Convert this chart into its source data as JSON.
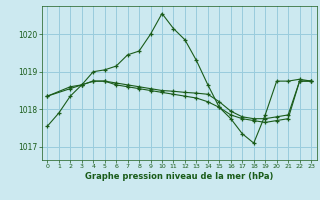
{
  "title": "Graphe pression niveau de la mer (hPa)",
  "background_color": "#cce9f0",
  "grid_color": "#99ccdd",
  "line_color": "#1a5c1a",
  "ylim": [
    1016.65,
    1020.75
  ],
  "yticks": [
    1017,
    1018,
    1019,
    1020
  ],
  "xlim": [
    -0.5,
    23.5
  ],
  "xticks": [
    0,
    1,
    2,
    3,
    4,
    5,
    6,
    7,
    8,
    9,
    10,
    11,
    12,
    13,
    14,
    15,
    16,
    17,
    18,
    19,
    20,
    21,
    22,
    23
  ],
  "series": [
    {
      "x": [
        0,
        1,
        2,
        3,
        4,
        5,
        6,
        7,
        8,
        9,
        10,
        11,
        12,
        13,
        14,
        15,
        16,
        17,
        18,
        19,
        20,
        21,
        22,
        23
      ],
      "y": [
        1017.55,
        1017.9,
        1018.35,
        1018.65,
        1019.0,
        1019.05,
        1019.15,
        1019.45,
        1019.55,
        1020.0,
        1020.55,
        1020.15,
        1019.85,
        1019.3,
        1018.65,
        1018.05,
        1017.75,
        1017.35,
        1017.1,
        1017.85,
        1018.75,
        1018.75,
        1018.8,
        1018.75
      ]
    },
    {
      "x": [
        0,
        2,
        3,
        4,
        5,
        6,
        7,
        8,
        9,
        10,
        11,
        12,
        13,
        14,
        15,
        16,
        17,
        18,
        19,
        20,
        21,
        22,
        23
      ],
      "y": [
        1018.35,
        1018.55,
        1018.65,
        1018.75,
        1018.75,
        1018.65,
        1018.6,
        1018.55,
        1018.5,
        1018.45,
        1018.4,
        1018.35,
        1018.3,
        1018.2,
        1018.05,
        1017.85,
        1017.75,
        1017.7,
        1017.65,
        1017.7,
        1017.75,
        1018.75,
        1018.75
      ]
    },
    {
      "x": [
        0,
        2,
        3,
        4,
        5,
        6,
        7,
        8,
        9,
        10,
        11,
        12,
        13,
        14,
        15,
        16,
        17,
        18,
        19,
        20,
        21,
        22,
        23
      ],
      "y": [
        1018.35,
        1018.6,
        1018.65,
        1018.75,
        1018.75,
        1018.7,
        1018.65,
        1018.6,
        1018.55,
        1018.5,
        1018.48,
        1018.45,
        1018.43,
        1018.4,
        1018.2,
        1017.95,
        1017.8,
        1017.75,
        1017.75,
        1017.8,
        1017.85,
        1018.75,
        1018.75
      ]
    }
  ]
}
